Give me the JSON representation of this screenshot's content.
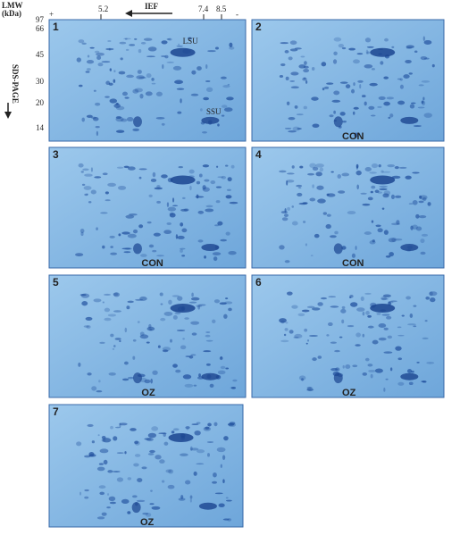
{
  "header": {
    "mw_title": "LMW",
    "mw_unit": "(kDa)",
    "mw_markers": [
      "97",
      "66",
      "45",
      "30",
      "20",
      "14"
    ],
    "ief": {
      "plus": "+",
      "pi_markers": [
        "5.2",
        "7.4",
        "8.5"
      ],
      "label": "IEF",
      "minus": "-"
    },
    "sds_label": "SDS-PAGE"
  },
  "panels": [
    {
      "number": "1",
      "labels": [
        "LSU",
        "SSU"
      ]
    },
    {
      "number": "2",
      "condition": "CON"
    },
    {
      "number": "3",
      "condition": "CON"
    },
    {
      "number": "4",
      "condition": "CON"
    },
    {
      "number": "5",
      "condition": "OZ"
    },
    {
      "number": "6",
      "condition": "OZ"
    },
    {
      "number": "7",
      "condition": "OZ"
    }
  ]
}
